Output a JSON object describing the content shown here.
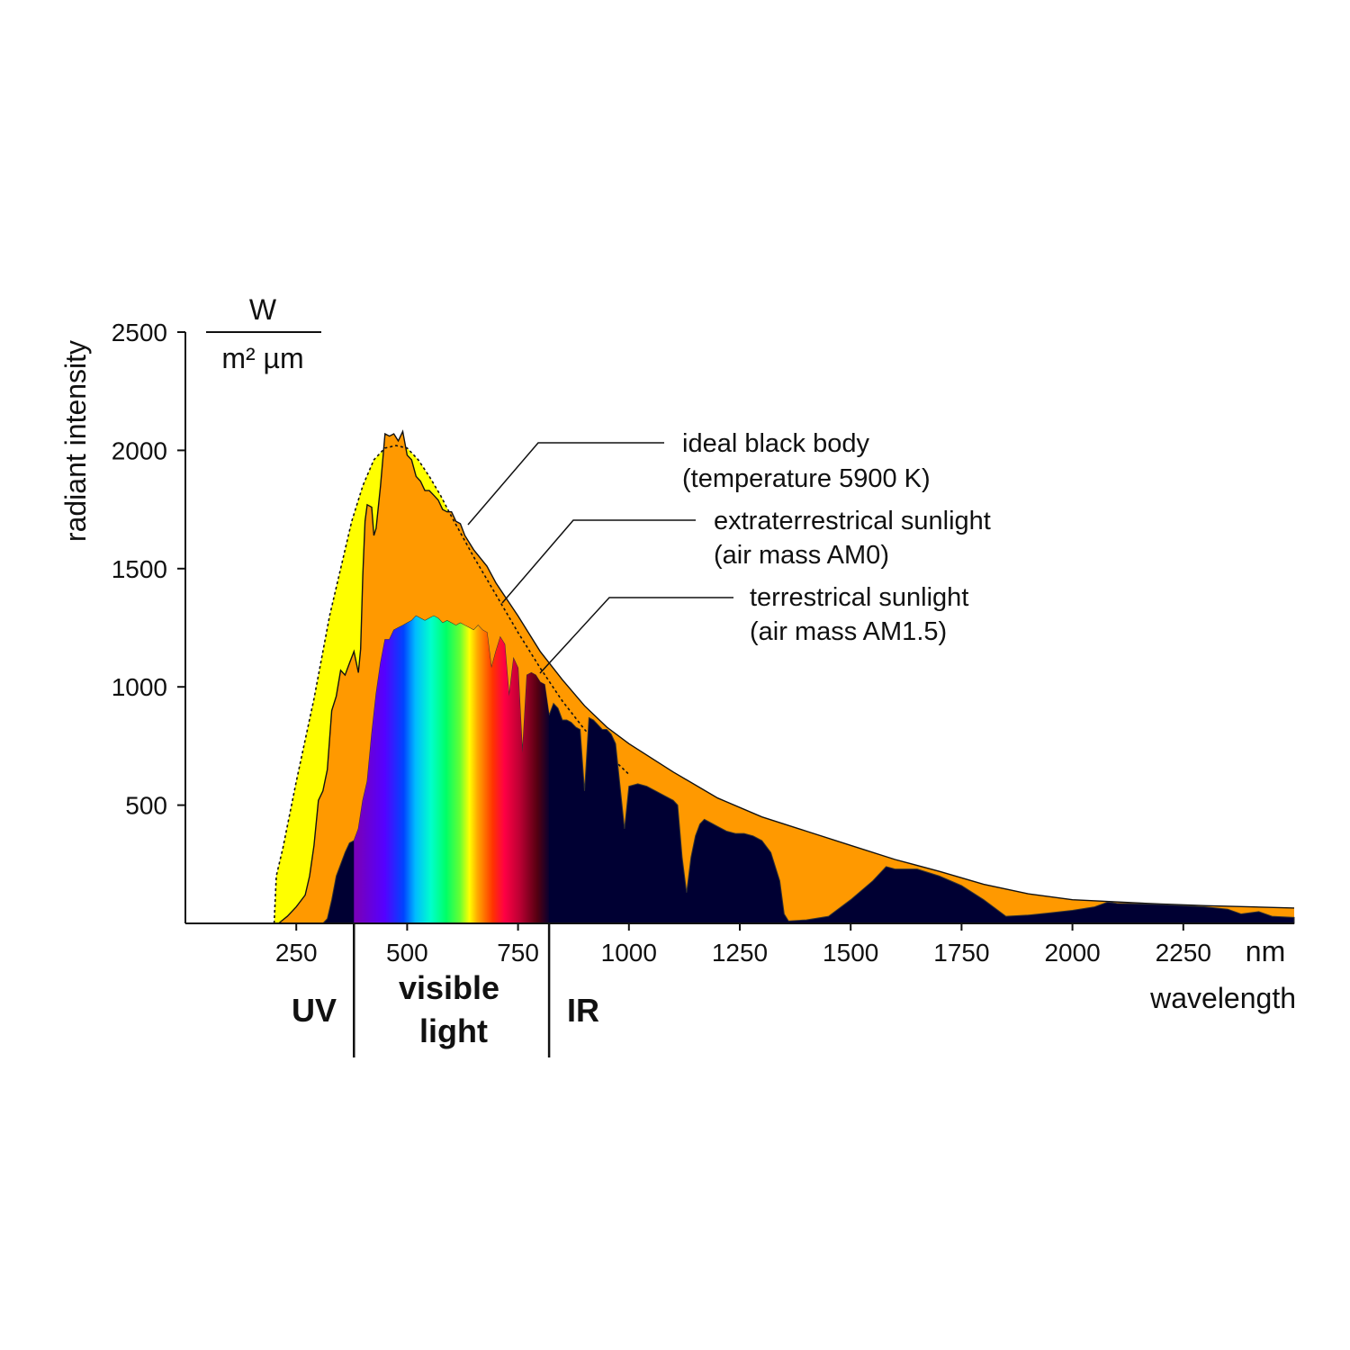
{
  "chart_data": {
    "type": "area",
    "title": "",
    "xlabel": "wavelength",
    "x_unit": "nm",
    "ylabel": "radiant intensity",
    "y_unit_numerator": "W",
    "y_unit_denominator": "m² µm",
    "xlim": [
      0,
      2500
    ],
    "ylim": [
      0,
      2500
    ],
    "x_ticks": [
      250,
      500,
      750,
      1000,
      1250,
      1500,
      1750,
      2000,
      2250
    ],
    "y_ticks": [
      500,
      1000,
      1500,
      2000,
      2500
    ],
    "grid": false,
    "series": [
      {
        "name": "ideal black body",
        "description": "(temperature 5900 K)",
        "color": "#ffff00",
        "line_style": "dotted",
        "points": [
          [
            200,
            0
          ],
          [
            205,
            200
          ],
          [
            220,
            320
          ],
          [
            250,
            600
          ],
          [
            290,
            950
          ],
          [
            325,
            1300
          ],
          [
            350,
            1500
          ],
          [
            375,
            1700
          ],
          [
            400,
            1850
          ],
          [
            425,
            1960
          ],
          [
            450,
            2010
          ],
          [
            475,
            2020
          ],
          [
            500,
            2010
          ],
          [
            525,
            1960
          ],
          [
            550,
            1890
          ],
          [
            575,
            1810
          ],
          [
            600,
            1720
          ],
          [
            650,
            1550
          ],
          [
            700,
            1390
          ],
          [
            750,
            1230
          ],
          [
            800,
            1080
          ],
          [
            850,
            940
          ],
          [
            900,
            820
          ],
          [
            950,
            720
          ],
          [
            1000,
            630
          ]
        ]
      },
      {
        "name": "extraterrestrical sunlight",
        "description": "(air mass AM0)",
        "color": "#ff9900",
        "line_style": "solid",
        "points": [
          [
            210,
            0
          ],
          [
            230,
            30
          ],
          [
            250,
            70
          ],
          [
            270,
            120
          ],
          [
            280,
            200
          ],
          [
            290,
            330
          ],
          [
            300,
            520
          ],
          [
            310,
            560
          ],
          [
            320,
            650
          ],
          [
            330,
            900
          ],
          [
            340,
            960
          ],
          [
            350,
            1070
          ],
          [
            360,
            1050
          ],
          [
            370,
            1100
          ],
          [
            380,
            1150
          ],
          [
            390,
            1060
          ],
          [
            395,
            1160
          ],
          [
            400,
            1470
          ],
          [
            405,
            1700
          ],
          [
            410,
            1770
          ],
          [
            420,
            1760
          ],
          [
            425,
            1640
          ],
          [
            430,
            1670
          ],
          [
            440,
            1850
          ],
          [
            450,
            2070
          ],
          [
            460,
            2060
          ],
          [
            470,
            2070
          ],
          [
            480,
            2040
          ],
          [
            490,
            2080
          ],
          [
            500,
            1980
          ],
          [
            510,
            1960
          ],
          [
            520,
            1890
          ],
          [
            530,
            1870
          ],
          [
            540,
            1830
          ],
          [
            550,
            1830
          ],
          [
            560,
            1810
          ],
          [
            570,
            1790
          ],
          [
            580,
            1750
          ],
          [
            590,
            1740
          ],
          [
            600,
            1740
          ],
          [
            610,
            1700
          ],
          [
            620,
            1690
          ],
          [
            630,
            1640
          ],
          [
            650,
            1580
          ],
          [
            680,
            1510
          ],
          [
            700,
            1440
          ],
          [
            750,
            1300
          ],
          [
            800,
            1150
          ],
          [
            850,
            1030
          ],
          [
            900,
            920
          ],
          [
            950,
            830
          ],
          [
            1000,
            760
          ],
          [
            1100,
            640
          ],
          [
            1200,
            530
          ],
          [
            1300,
            450
          ],
          [
            1400,
            390
          ],
          [
            1500,
            330
          ],
          [
            1600,
            270
          ],
          [
            1700,
            220
          ],
          [
            1800,
            165
          ],
          [
            1900,
            125
          ],
          [
            2000,
            100
          ],
          [
            2200,
            82
          ],
          [
            2300,
            75
          ],
          [
            2400,
            70
          ],
          [
            2500,
            65
          ]
        ]
      },
      {
        "name": "terrestrical sunlight",
        "description": "(air mass AM1.5)",
        "color": "#000033",
        "line_style": "solid",
        "points": [
          [
            310,
            0
          ],
          [
            320,
            20
          ],
          [
            330,
            100
          ],
          [
            340,
            200
          ],
          [
            350,
            250
          ],
          [
            360,
            300
          ],
          [
            370,
            340
          ],
          [
            380,
            350
          ],
          [
            390,
            400
          ],
          [
            400,
            520
          ],
          [
            410,
            600
          ],
          [
            420,
            800
          ],
          [
            430,
            970
          ],
          [
            440,
            1100
          ],
          [
            450,
            1200
          ],
          [
            460,
            1200
          ],
          [
            470,
            1240
          ],
          [
            480,
            1250
          ],
          [
            490,
            1260
          ],
          [
            500,
            1270
          ],
          [
            510,
            1280
          ],
          [
            520,
            1300
          ],
          [
            530,
            1290
          ],
          [
            540,
            1280
          ],
          [
            550,
            1290
          ],
          [
            560,
            1300
          ],
          [
            570,
            1290
          ],
          [
            580,
            1270
          ],
          [
            590,
            1280
          ],
          [
            600,
            1270
          ],
          [
            610,
            1260
          ],
          [
            620,
            1270
          ],
          [
            630,
            1260
          ],
          [
            640,
            1250
          ],
          [
            650,
            1240
          ],
          [
            660,
            1260
          ],
          [
            670,
            1240
          ],
          [
            680,
            1230
          ],
          [
            690,
            1080
          ],
          [
            700,
            1150
          ],
          [
            710,
            1210
          ],
          [
            720,
            1180
          ],
          [
            730,
            960
          ],
          [
            740,
            1120
          ],
          [
            750,
            1080
          ],
          [
            760,
            720
          ],
          [
            770,
            1050
          ],
          [
            780,
            1060
          ],
          [
            790,
            1050
          ],
          [
            800,
            1020
          ],
          [
            810,
            1010
          ],
          [
            820,
            880
          ],
          [
            830,
            930
          ],
          [
            840,
            910
          ],
          [
            850,
            860
          ],
          [
            860,
            860
          ],
          [
            870,
            850
          ],
          [
            880,
            830
          ],
          [
            890,
            820
          ],
          [
            900,
            560
          ],
          [
            910,
            870
          ],
          [
            920,
            860
          ],
          [
            930,
            840
          ],
          [
            940,
            820
          ],
          [
            950,
            820
          ],
          [
            960,
            800
          ],
          [
            970,
            760
          ],
          [
            990,
            400
          ],
          [
            1000,
            580
          ],
          [
            1020,
            590
          ],
          [
            1040,
            580
          ],
          [
            1060,
            560
          ],
          [
            1080,
            540
          ],
          [
            1100,
            520
          ],
          [
            1110,
            500
          ],
          [
            1120,
            280
          ],
          [
            1130,
            130
          ],
          [
            1140,
            280
          ],
          [
            1150,
            370
          ],
          [
            1160,
            420
          ],
          [
            1170,
            440
          ],
          [
            1180,
            430
          ],
          [
            1200,
            410
          ],
          [
            1220,
            390
          ],
          [
            1240,
            380
          ],
          [
            1260,
            380
          ],
          [
            1280,
            370
          ],
          [
            1300,
            350
          ],
          [
            1320,
            300
          ],
          [
            1340,
            180
          ],
          [
            1350,
            40
          ],
          [
            1360,
            10
          ],
          [
            1400,
            15
          ],
          [
            1450,
            30
          ],
          [
            1500,
            100
          ],
          [
            1550,
            180
          ],
          [
            1580,
            240
          ],
          [
            1600,
            230
          ],
          [
            1650,
            230
          ],
          [
            1700,
            200
          ],
          [
            1750,
            160
          ],
          [
            1800,
            100
          ],
          [
            1850,
            30
          ],
          [
            1900,
            35
          ],
          [
            1950,
            45
          ],
          [
            2000,
            55
          ],
          [
            2050,
            70
          ],
          [
            2080,
            90
          ],
          [
            2100,
            85
          ],
          [
            2200,
            80
          ],
          [
            2300,
            70
          ],
          [
            2350,
            60
          ],
          [
            2380,
            40
          ],
          [
            2420,
            50
          ],
          [
            2450,
            30
          ],
          [
            2500,
            25
          ]
        ]
      }
    ],
    "legend": {
      "placement": "upper-right",
      "entries": [
        {
          "name": "ideal black body",
          "description": "(temperature 5900 K)"
        },
        {
          "name": "extraterrestrical sunlight",
          "description": "(air mass AM0)"
        },
        {
          "name": "terrestrical sunlight",
          "description": "(air mass AM1.5)"
        }
      ]
    },
    "visible_band": {
      "from": 380,
      "to": 820
    },
    "regions": [
      {
        "label": "UV",
        "from": 0,
        "to": 380
      },
      {
        "label": "visible\nlight",
        "from": 380,
        "to": 820
      },
      {
        "label": "IR",
        "from": 820,
        "to": 2500
      }
    ]
  }
}
